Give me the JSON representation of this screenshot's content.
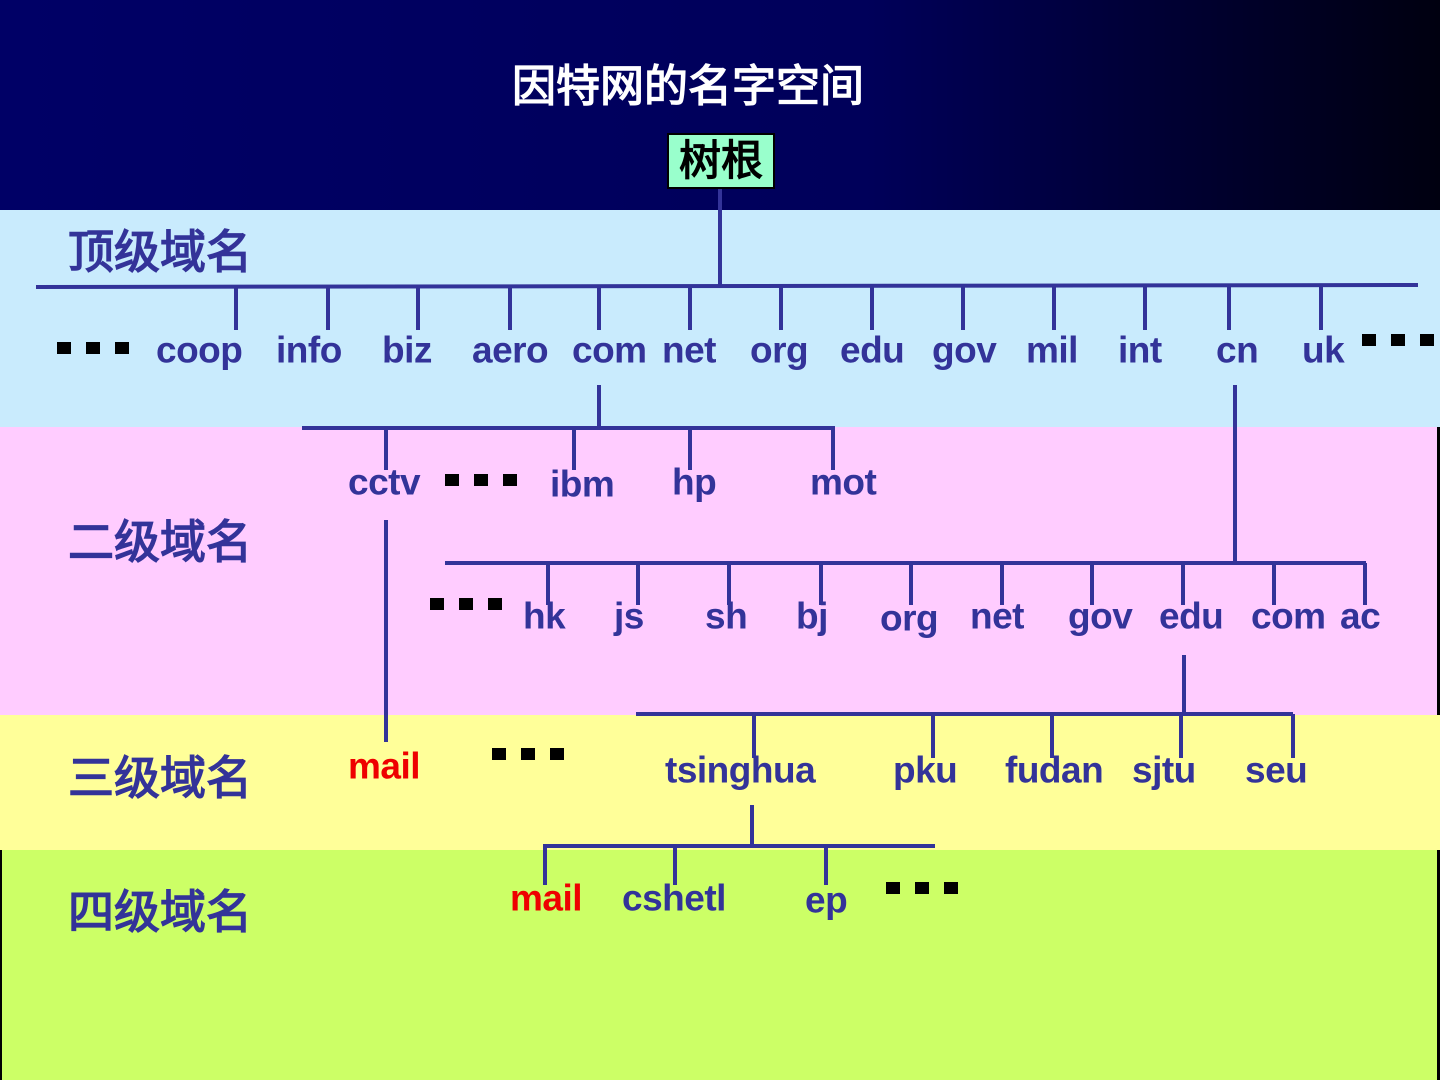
{
  "title": "因特网的名字空间",
  "root": "树根",
  "levels": [
    "顶级域名",
    "二级域名",
    "三级域名",
    "四级域名"
  ],
  "top_level": [
    "coop",
    "info",
    "biz",
    "aero",
    "com",
    "net",
    "org",
    "edu",
    "gov",
    "mil",
    "int",
    "cn",
    "uk"
  ],
  "com_children": [
    "cctv",
    "ibm",
    "hp",
    "mot"
  ],
  "cn_children": [
    "hk",
    "js",
    "sh",
    "bj",
    "org",
    "net",
    "gov",
    "edu",
    "com",
    "ac"
  ],
  "edu_children": [
    "tsinghua",
    "pku",
    "fudan",
    "sjtu",
    "seu"
  ],
  "cctv_children": [
    "mail"
  ],
  "tsinghua_children": [
    "mail",
    "cshetl",
    "ep"
  ],
  "colors": {
    "node_text": "#333399",
    "highlight_text": "#ee0000",
    "root_fill": "#99ffcc",
    "band_top": "#000066",
    "band_level1": "#c9ebfd",
    "band_level2": "#ffccff",
    "band_level3": "#ffff99",
    "band_level4": "#ccff66"
  }
}
